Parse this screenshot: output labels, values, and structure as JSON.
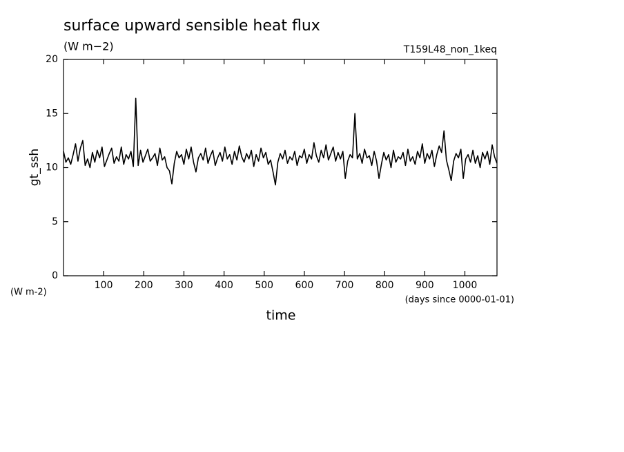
{
  "chart_data": {
    "type": "line",
    "title": "surface upward sensible heat flux",
    "subtitle": "(W m−2)",
    "experiment": "T159L48_non_1keq",
    "ylabel": "gt_ssh",
    "yunits": "(W m-2)",
    "xlabel": "time",
    "xunits": "(days since 0000-01-01)",
    "xlim": [
      0,
      1080
    ],
    "ylim": [
      0,
      20
    ],
    "xticks": [
      100,
      200,
      300,
      400,
      500,
      600,
      700,
      800,
      900,
      1000
    ],
    "yticks": [
      0,
      5,
      10,
      15,
      20
    ],
    "color": "#000000",
    "x": [
      0,
      6,
      12,
      18,
      24,
      30,
      36,
      42,
      48,
      54,
      60,
      66,
      72,
      78,
      84,
      90,
      96,
      102,
      108,
      114,
      120,
      126,
      132,
      138,
      144,
      150,
      156,
      162,
      168,
      174,
      180,
      186,
      192,
      198,
      204,
      210,
      216,
      222,
      228,
      234,
      240,
      246,
      252,
      258,
      264,
      270,
      276,
      282,
      288,
      294,
      300,
      306,
      312,
      318,
      324,
      330,
      336,
      342,
      348,
      354,
      360,
      366,
      372,
      378,
      384,
      390,
      396,
      402,
      408,
      414,
      420,
      426,
      432,
      438,
      444,
      450,
      456,
      462,
      468,
      474,
      480,
      486,
      492,
      498,
      504,
      510,
      516,
      522,
      528,
      534,
      540,
      546,
      552,
      558,
      564,
      570,
      576,
      582,
      588,
      594,
      600,
      606,
      612,
      618,
      624,
      630,
      636,
      642,
      648,
      654,
      660,
      666,
      672,
      678,
      684,
      690,
      696,
      702,
      708,
      714,
      720,
      726,
      732,
      738,
      744,
      750,
      756,
      762,
      768,
      774,
      780,
      786,
      792,
      798,
      804,
      810,
      816,
      822,
      828,
      834,
      840,
      846,
      852,
      858,
      864,
      870,
      876,
      882,
      888,
      894,
      900,
      906,
      912,
      918,
      924,
      930,
      936,
      942,
      948,
      954,
      960,
      966,
      972,
      978,
      984,
      990,
      996,
      1002,
      1008,
      1014,
      1020,
      1026,
      1032,
      1038,
      1044,
      1050,
      1056,
      1062,
      1068,
      1074,
      1080
    ],
    "values": [
      11.5,
      10.5,
      10.9,
      10.3,
      11.2,
      12.2,
      10.6,
      11.8,
      12.5,
      10.2,
      10.8,
      10.0,
      11.4,
      10.5,
      11.6,
      10.9,
      11.9,
      10.1,
      10.7,
      11.3,
      11.8,
      10.4,
      11.0,
      10.6,
      11.9,
      10.3,
      11.2,
      10.8,
      11.5,
      10.1,
      16.4,
      10.2,
      11.6,
      10.5,
      11.1,
      11.7,
      10.6,
      10.9,
      11.3,
      10.2,
      11.8,
      10.7,
      11.0,
      10.0,
      9.7,
      8.5,
      10.4,
      11.5,
      10.9,
      11.2,
      10.3,
      11.7,
      10.8,
      11.9,
      10.5,
      9.6,
      10.9,
      11.3,
      10.7,
      11.8,
      10.4,
      11.1,
      11.6,
      10.2,
      10.9,
      11.4,
      10.6,
      11.9,
      10.8,
      11.2,
      10.3,
      11.5,
      10.7,
      12.0,
      11.0,
      10.5,
      11.3,
      10.8,
      11.6,
      10.1,
      11.2,
      10.6,
      11.8,
      10.9,
      11.4,
      10.3,
      10.7,
      9.6,
      8.4,
      10.5,
      11.3,
      10.8,
      11.6,
      10.4,
      11.0,
      10.7,
      11.5,
      10.2,
      11.1,
      10.9,
      11.7,
      10.4,
      11.2,
      10.8,
      12.3,
      11.1,
      10.5,
      11.6,
      10.9,
      12.1,
      10.7,
      11.3,
      11.9,
      10.6,
      11.4,
      10.8,
      11.5,
      9.0,
      10.6,
      11.2,
      10.9,
      15.0,
      10.8,
      11.3,
      10.4,
      11.7,
      10.9,
      11.1,
      10.2,
      11.5,
      10.6,
      9.0,
      10.3,
      11.4,
      10.7,
      11.2,
      10.0,
      11.6,
      10.5,
      11.0,
      10.8,
      11.4,
      10.2,
      11.7,
      10.6,
      11.0,
      10.3,
      11.5,
      10.9,
      12.2,
      10.4,
      11.3,
      10.8,
      11.6,
      10.1,
      11.2,
      12.0,
      11.4,
      13.4,
      10.7,
      9.8,
      8.8,
      10.6,
      11.3,
      10.9,
      11.7,
      9.0,
      10.8,
      11.2,
      10.5,
      11.6,
      10.4,
      11.1,
      10.0,
      11.4,
      10.8,
      11.5,
      10.3,
      12.1,
      11.0,
      10.4
    ]
  }
}
